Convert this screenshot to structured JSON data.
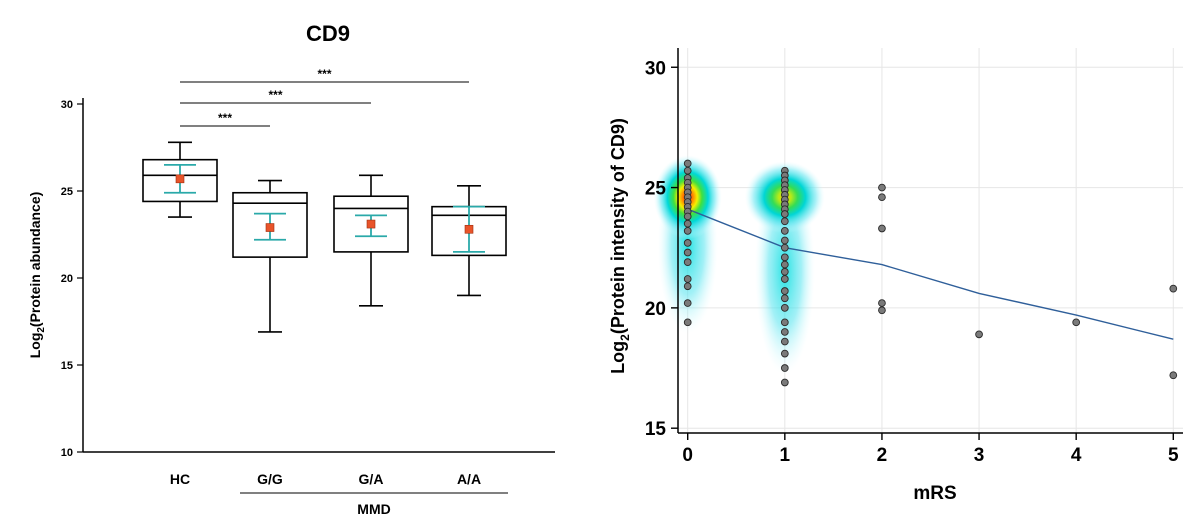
{
  "chart_data": [
    {
      "type": "box",
      "title": "CD9",
      "ylabel_main": "Log",
      "ylabel_sub": "2",
      "ylabel_rest": "(Protein abundance)",
      "ylim": [
        10,
        30
      ],
      "yticks": [
        10,
        15,
        20,
        25,
        30
      ],
      "categories": [
        "HC",
        "G/G",
        "G/A",
        "A/A"
      ],
      "group_label": "MMD",
      "group_members": [
        "G/G",
        "G/A",
        "A/A"
      ],
      "boxes": [
        {
          "name": "HC",
          "min": 23.5,
          "q1": 24.4,
          "median": 25.9,
          "q3": 26.8,
          "max": 27.8,
          "mean": 25.7,
          "sd_low": 24.9,
          "sd_high": 26.5
        },
        {
          "name": "G/G",
          "min": 16.9,
          "q1": 21.2,
          "median": 24.3,
          "q3": 24.9,
          "max": 25.6,
          "mean": 22.9,
          "sd_low": 22.2,
          "sd_high": 23.7
        },
        {
          "name": "G/A",
          "min": 18.4,
          "q1": 21.5,
          "median": 24.0,
          "q3": 24.7,
          "max": 25.9,
          "mean": 23.1,
          "sd_low": 22.4,
          "sd_high": 23.6
        },
        {
          "name": "A/A",
          "min": 19.0,
          "q1": 21.3,
          "median": 23.6,
          "q3": 24.1,
          "max": 25.3,
          "mean": 22.8,
          "sd_low": 21.5,
          "sd_high": 24.1
        }
      ],
      "significance": [
        {
          "from": "HC",
          "to": "G/G",
          "label": "***"
        },
        {
          "from": "HC",
          "to": "G/A",
          "label": "***"
        },
        {
          "from": "HC",
          "to": "A/A",
          "label": "***"
        }
      ],
      "colors": {
        "box": "#000000",
        "mean": "#e8542a",
        "sd": "#2aa9a9"
      }
    },
    {
      "type": "scatter",
      "xlabel": "mRS",
      "ylabel_main": "Log",
      "ylabel_sub": "2",
      "ylabel_rest": "(Protein intensity of CD9)",
      "xlim": [
        -0.1,
        5.1
      ],
      "ylim": [
        14.8,
        30.8
      ],
      "xticks": [
        0,
        1,
        2,
        3,
        4,
        5
      ],
      "yticks": [
        15,
        20,
        25,
        30
      ],
      "grid": true,
      "points": [
        {
          "x": 0,
          "y": 26.0
        },
        {
          "x": 0,
          "y": 25.7
        },
        {
          "x": 0,
          "y": 25.4
        },
        {
          "x": 0,
          "y": 25.2
        },
        {
          "x": 0,
          "y": 25.0
        },
        {
          "x": 0,
          "y": 24.8
        },
        {
          "x": 0,
          "y": 24.6
        },
        {
          "x": 0,
          "y": 24.4
        },
        {
          "x": 0,
          "y": 24.2
        },
        {
          "x": 0,
          "y": 24.0
        },
        {
          "x": 0,
          "y": 23.8
        },
        {
          "x": 0,
          "y": 23.5
        },
        {
          "x": 0,
          "y": 23.2
        },
        {
          "x": 0,
          "y": 22.7
        },
        {
          "x": 0,
          "y": 22.3
        },
        {
          "x": 0,
          "y": 21.9
        },
        {
          "x": 0,
          "y": 21.2
        },
        {
          "x": 0,
          "y": 20.9
        },
        {
          "x": 0,
          "y": 20.2
        },
        {
          "x": 0,
          "y": 19.4
        },
        {
          "x": 1,
          "y": 25.7
        },
        {
          "x": 1,
          "y": 25.5
        },
        {
          "x": 1,
          "y": 25.3
        },
        {
          "x": 1,
          "y": 25.1
        },
        {
          "x": 1,
          "y": 24.9
        },
        {
          "x": 1,
          "y": 24.7
        },
        {
          "x": 1,
          "y": 24.5
        },
        {
          "x": 1,
          "y": 24.3
        },
        {
          "x": 1,
          "y": 24.1
        },
        {
          "x": 1,
          "y": 23.9
        },
        {
          "x": 1,
          "y": 23.6
        },
        {
          "x": 1,
          "y": 23.2
        },
        {
          "x": 1,
          "y": 22.8
        },
        {
          "x": 1,
          "y": 22.5
        },
        {
          "x": 1,
          "y": 22.1
        },
        {
          "x": 1,
          "y": 21.8
        },
        {
          "x": 1,
          "y": 21.5
        },
        {
          "x": 1,
          "y": 21.2
        },
        {
          "x": 1,
          "y": 20.7
        },
        {
          "x": 1,
          "y": 20.4
        },
        {
          "x": 1,
          "y": 20.0
        },
        {
          "x": 1,
          "y": 19.4
        },
        {
          "x": 1,
          "y": 19.0
        },
        {
          "x": 1,
          "y": 18.6
        },
        {
          "x": 1,
          "y": 18.1
        },
        {
          "x": 1,
          "y": 17.5
        },
        {
          "x": 1,
          "y": 16.9
        },
        {
          "x": 2,
          "y": 25.0
        },
        {
          "x": 2,
          "y": 24.6
        },
        {
          "x": 2,
          "y": 23.3
        },
        {
          "x": 2,
          "y": 20.2
        },
        {
          "x": 2,
          "y": 19.9
        },
        {
          "x": 3,
          "y": 18.9
        },
        {
          "x": 4,
          "y": 19.4
        },
        {
          "x": 5,
          "y": 20.8
        },
        {
          "x": 5,
          "y": 17.2
        }
      ],
      "trend_line": [
        {
          "x": 0,
          "y": 24.1
        },
        {
          "x": 1,
          "y": 22.5
        },
        {
          "x": 2,
          "y": 21.8
        },
        {
          "x": 3,
          "y": 20.6
        },
        {
          "x": 4,
          "y": 19.7
        },
        {
          "x": 5,
          "y": 18.7
        }
      ],
      "density_clusters": [
        {
          "x": 0,
          "y_center": 24.6,
          "y_low": 19.5,
          "y_high": 26.3,
          "peak": "hot"
        },
        {
          "x": 1,
          "y_center": 24.6,
          "y_low": 17.8,
          "y_high": 26.0,
          "peak": "warm"
        }
      ],
      "colors": {
        "point": "#7a7a7a",
        "point_edge": "#2b2b2b",
        "trend": "#2f5f9a",
        "grid": "#e6e6e6"
      }
    }
  ]
}
